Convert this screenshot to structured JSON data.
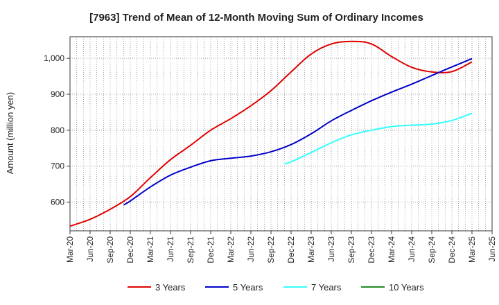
{
  "chart_data": {
    "type": "line",
    "title": "[7963]  Trend of Mean of 12-Month Moving Sum of Ordinary Incomes",
    "xlabel": "",
    "ylabel": "Amount (million yen)",
    "ylim": [
      520,
      1060
    ],
    "yticks": [
      600,
      700,
      800,
      900,
      1000
    ],
    "ytick_labels": [
      "600",
      "700",
      "800",
      "900",
      "1,000"
    ],
    "x_categories": [
      "Mar-20",
      "Jun-20",
      "Sep-20",
      "Dec-20",
      "Mar-21",
      "Jun-21",
      "Sep-21",
      "Dec-21",
      "Mar-22",
      "Jun-22",
      "Sep-22",
      "Dec-22",
      "Mar-23",
      "Jun-23",
      "Sep-23",
      "Dec-23",
      "Mar-24",
      "Jun-24",
      "Sep-24",
      "Dec-24",
      "Mar-25",
      "Jun-25"
    ],
    "grid": true,
    "legend_position": "bottom",
    "series": [
      {
        "name": "3 Years",
        "color": "#e00000",
        "points": [
          [
            0,
            533
          ],
          [
            1,
            552
          ],
          [
            2,
            580
          ],
          [
            3,
            615
          ],
          [
            4,
            668
          ],
          [
            5,
            718
          ],
          [
            6,
            758
          ],
          [
            7,
            800
          ],
          [
            8,
            832
          ],
          [
            9,
            868
          ],
          [
            10,
            910
          ],
          [
            11,
            962
          ],
          [
            12,
            1012
          ],
          [
            13,
            1040
          ],
          [
            14,
            1047
          ],
          [
            15,
            1040
          ],
          [
            16,
            1005
          ],
          [
            17,
            975
          ],
          [
            18,
            962
          ],
          [
            19,
            963
          ],
          [
            20,
            990
          ]
        ]
      },
      {
        "name": "5 Years",
        "color": "#0000cc",
        "points": [
          [
            2.67,
            592
          ],
          [
            3,
            603
          ],
          [
            4,
            642
          ],
          [
            5,
            675
          ],
          [
            6,
            697
          ],
          [
            7,
            715
          ],
          [
            8,
            722
          ],
          [
            9,
            728
          ],
          [
            10,
            740
          ],
          [
            11,
            760
          ],
          [
            12,
            790
          ],
          [
            13,
            826
          ],
          [
            14,
            855
          ],
          [
            15,
            882
          ],
          [
            16,
            906
          ],
          [
            17,
            928
          ],
          [
            18,
            952
          ],
          [
            19,
            976
          ],
          [
            20,
            999
          ]
        ]
      },
      {
        "name": "7 Years",
        "color": "#33ffff",
        "points": [
          [
            10.67,
            706
          ],
          [
            11,
            712
          ],
          [
            12,
            738
          ],
          [
            13,
            765
          ],
          [
            14,
            787
          ],
          [
            15,
            800
          ],
          [
            16,
            810
          ],
          [
            17,
            814
          ],
          [
            18,
            817
          ],
          [
            19,
            827
          ],
          [
            20,
            847
          ]
        ]
      },
      {
        "name": "10 Years",
        "color": "#228b22",
        "points": []
      }
    ]
  }
}
